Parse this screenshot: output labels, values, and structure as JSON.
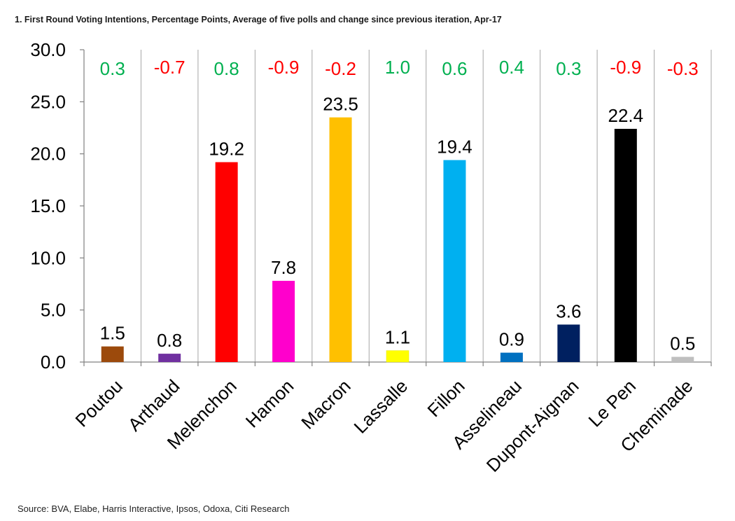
{
  "chart_data": {
    "type": "bar",
    "title": "1. First Round Voting Intentions, Percentage Points, Average of five polls and change since previous iteration, Apr-17",
    "source": "Source: BVA, Elabe, Harris Interactive, Ipsos, Odoxa, Citi Research",
    "xlabel": "",
    "ylabel": "",
    "ylim": [
      0,
      30
    ],
    "yticks": [
      "0.0",
      "5.0",
      "10.0",
      "15.0",
      "20.0",
      "25.0",
      "30.0"
    ],
    "grid": "vertical",
    "categories": [
      "Poutou",
      "Arthaud",
      "Melenchon",
      "Hamon",
      "Macron",
      "Lassalle",
      "Fillon",
      "Asselineau",
      "Dupont-Aignan",
      "Le Pen",
      "Cheminade"
    ],
    "values": [
      1.5,
      0.8,
      19.2,
      7.8,
      23.5,
      1.1,
      19.4,
      0.9,
      3.6,
      22.4,
      0.5
    ],
    "value_labels": [
      "1.5",
      "0.8",
      "19.2",
      "7.8",
      "23.5",
      "1.1",
      "19.4",
      "0.9",
      "3.6",
      "22.4",
      "0.5"
    ],
    "changes": [
      "0.3",
      "-0.7",
      "0.8",
      "-0.9",
      "-0.2",
      "1.0",
      "0.6",
      "0.4",
      "0.3",
      "-0.9",
      "-0.3"
    ],
    "bar_colors": [
      "#9C4A0C",
      "#7030A0",
      "#FF0000",
      "#FF00CC",
      "#FFC000",
      "#FFFF00",
      "#00B0F0",
      "#0070C0",
      "#002060",
      "#000000",
      "#BFBFBF"
    ],
    "positive_color": "#00B050",
    "negative_color": "#FF0000"
  }
}
